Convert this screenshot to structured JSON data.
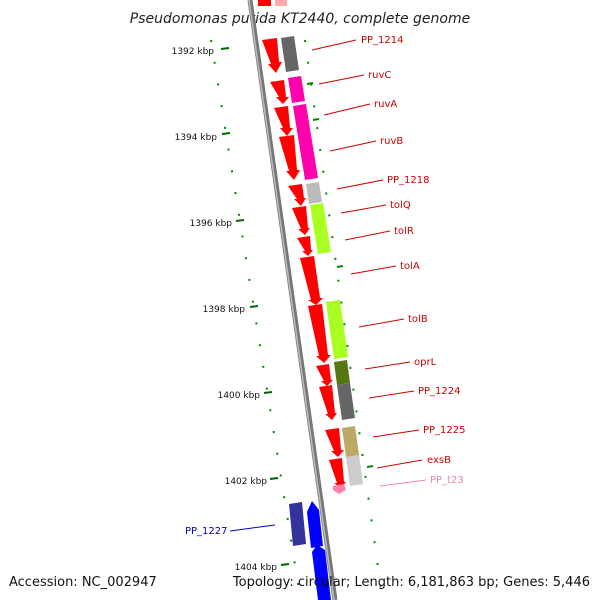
{
  "title": "Pseudomonas putida KT2440, complete genome",
  "footer": {
    "accession": "Accession: NC_002947",
    "summary": "Topology: circular; Length: 6,181,863 bp; Genes: 5,446"
  },
  "ruler_ticks": [
    "1392 kbp",
    "1394 kbp",
    "1396 kbp",
    "1398 kbp",
    "1400 kbp",
    "1402 kbp",
    "1404 kbp"
  ],
  "gene_labels": [
    {
      "name": "PP_1214",
      "color": "#cc0000"
    },
    {
      "name": "ruvC",
      "color": "#cc0000"
    },
    {
      "name": "ruvA",
      "color": "#cc0000"
    },
    {
      "name": "ruvB",
      "color": "#cc0000"
    },
    {
      "name": "PP_1218",
      "color": "#cc0000"
    },
    {
      "name": "tolQ",
      "color": "#cc0000"
    },
    {
      "name": "tolR",
      "color": "#cc0000"
    },
    {
      "name": "tolA",
      "color": "#cc0000"
    },
    {
      "name": "tolB",
      "color": "#cc0000"
    },
    {
      "name": "oprL",
      "color": "#cc0000"
    },
    {
      "name": "PP_1224",
      "color": "#cc0000"
    },
    {
      "name": "PP_1225",
      "color": "#cc0000"
    },
    {
      "name": "exsB",
      "color": "#cc0000"
    },
    {
      "name": "PP_t23",
      "color": "#ee88aa"
    },
    {
      "name": "PP_1227",
      "color": "#0000cc"
    }
  ],
  "colors": {
    "cds_forward": "#ff0000",
    "cds_reverse": "#0000ff",
    "backbone": "#888888",
    "tick_green": "#006600"
  }
}
